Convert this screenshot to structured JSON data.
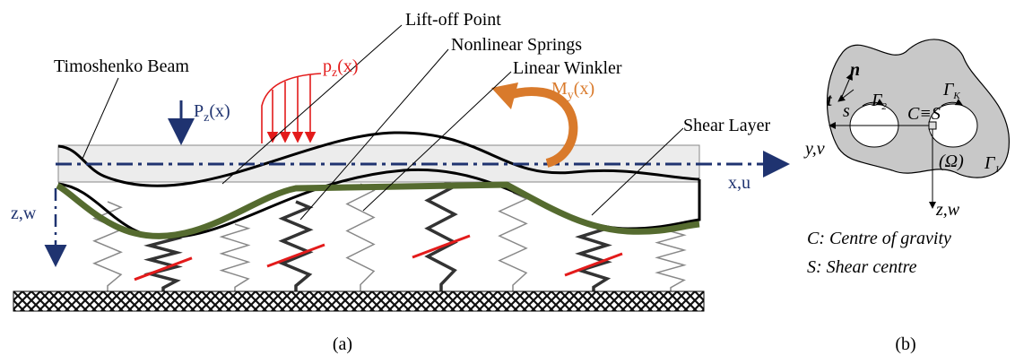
{
  "panel_a": {
    "labels": {
      "timoshenko_beam": "Timoshenko Beam",
      "lift_off_point": "Lift-off Point",
      "nonlinear_springs": "Nonlinear Springs",
      "linear_winkler": "Linear Winkler",
      "shear_layer": "Shear Layer"
    },
    "load_point": {
      "base": "P",
      "sub": "z",
      "rest": "(x)"
    },
    "load_distributed": {
      "base": "p",
      "sub": "z",
      "rest": "(x)"
    },
    "moment": {
      "base": "M",
      "sub": "y",
      "rest": "(x)"
    },
    "x_axis": "x,u",
    "z_axis": "z,w",
    "caption": "(a)"
  },
  "panel_b": {
    "n": "n",
    "t": "t",
    "s": "s",
    "gamma_2": {
      "base": "Γ",
      "sub": "2"
    },
    "gamma_k": {
      "base": "Γ",
      "sub": "K"
    },
    "gamma_1": {
      "base": "Γ",
      "sub": "1"
    },
    "centre": "C≡S",
    "y_axis": "y,v",
    "z_axis": "z,w",
    "omega": "(Ω)",
    "legend": [
      "C: Centre of gravity",
      "S: Shear centre"
    ],
    "caption": "(b)"
  }
}
